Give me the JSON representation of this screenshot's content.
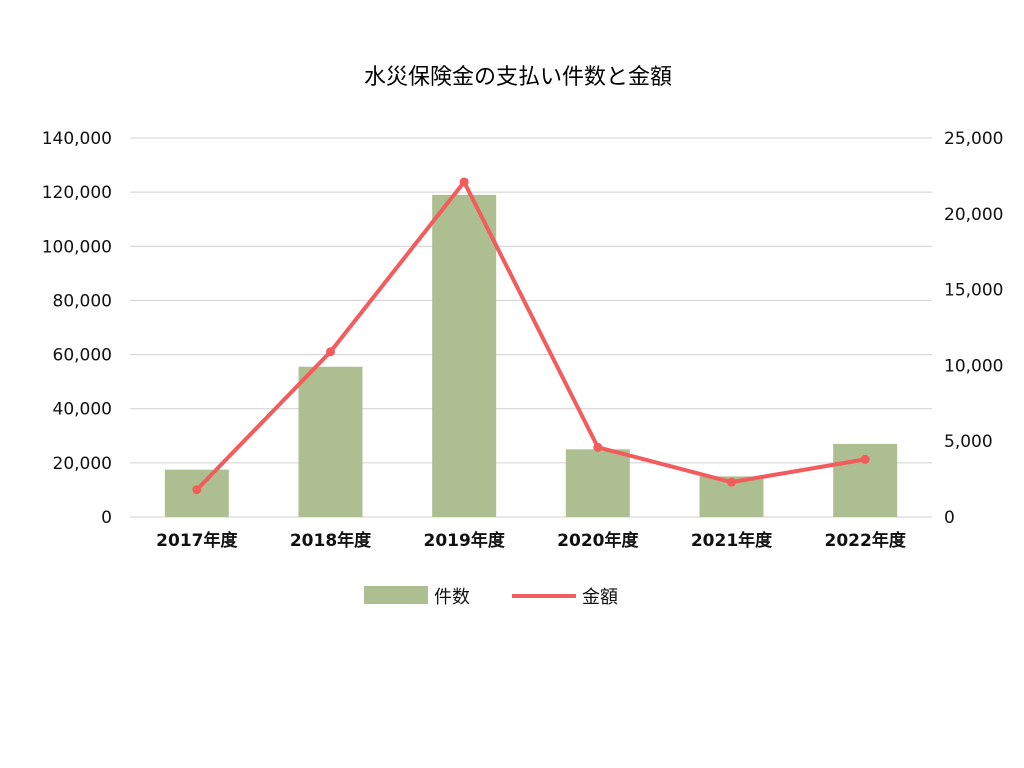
{
  "chart_data": {
    "type": "bar",
    "title": "水災保険金の支払い件数と金額",
    "categories": [
      "2017年度",
      "2018年度",
      "2019年度",
      "2020年度",
      "2021年度",
      "2022年度"
    ],
    "series": [
      {
        "name": "件数",
        "type": "bar",
        "axis": "left",
        "color": "#adbf90",
        "values": [
          17500,
          55500,
          119000,
          25000,
          15000,
          27000
        ]
      },
      {
        "name": "金額",
        "type": "line",
        "axis": "right",
        "color": "#f25c5c",
        "values": [
          1800,
          10900,
          22100,
          4600,
          2300,
          3800
        ]
      }
    ],
    "y_left": {
      "range": [
        0,
        140000
      ],
      "ticks": [
        "0",
        "20,000",
        "40,000",
        "60,000",
        "80,000",
        "100,000",
        "120,000",
        "140,000"
      ]
    },
    "y_right": {
      "range": [
        0,
        25000
      ],
      "ticks": [
        "0",
        "5,000",
        "10,000",
        "15,000",
        "20,000",
        "25,000"
      ]
    },
    "grid": true,
    "legend": "bottom"
  }
}
